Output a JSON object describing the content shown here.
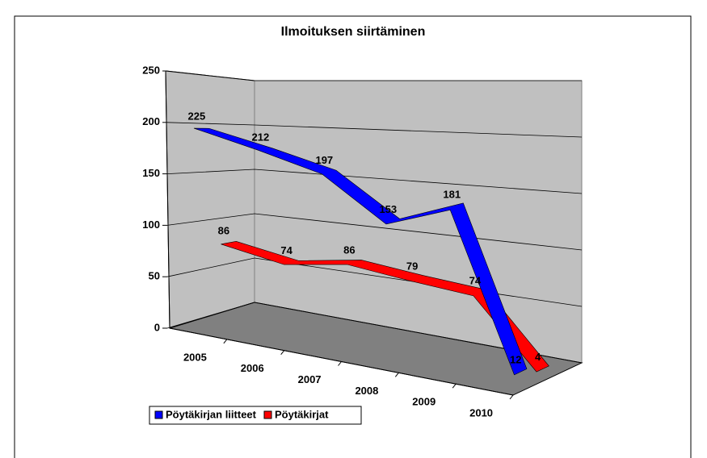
{
  "chart_data": {
    "type": "line3d",
    "title": "Ilmoituksen siirtäminen",
    "categories": [
      "2005",
      "2006",
      "2007",
      "2008",
      "2009",
      "2010"
    ],
    "series": [
      {
        "name": "Pöytäkirjan liitteet",
        "color": "#0000ff",
        "values": [
          225,
          212,
          197,
          153,
          181,
          12
        ]
      },
      {
        "name": "Pöytäkirjat",
        "color": "#ff0000",
        "values": [
          86,
          74,
          86,
          79,
          74,
          4
        ]
      }
    ],
    "ylim": [
      0,
      250
    ],
    "yticks": [
      0,
      50,
      100,
      150,
      200,
      250
    ],
    "grid": true,
    "legend": "bottom-left"
  }
}
